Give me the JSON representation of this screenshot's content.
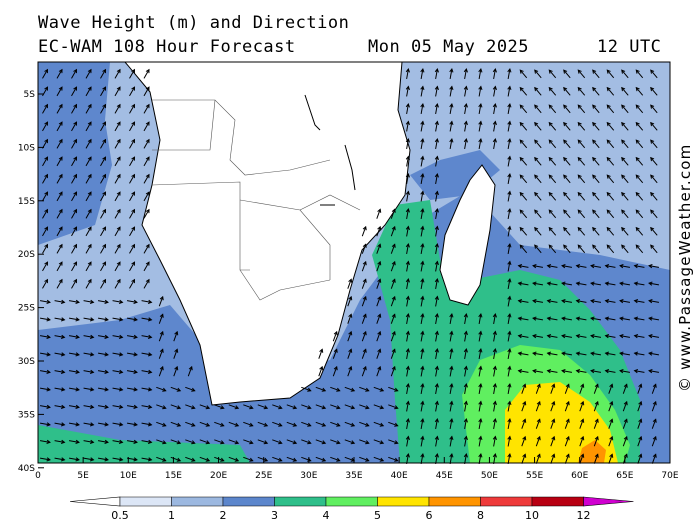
{
  "header": {
    "title_line1": "Wave Height (m) and Direction",
    "title_line2": "EC-WAM 108 Hour Forecast",
    "date": "Mon 05 May 2025",
    "time": "12 UTC"
  },
  "credit": "© www.PassageWeather.com",
  "axes": {
    "lat_labels": [
      "5S",
      "10S",
      "15S",
      "20S",
      "25S",
      "30S",
      "35S",
      "40S"
    ],
    "lon_labels": [
      "0",
      "5E",
      "10E",
      "15E",
      "20E",
      "25E",
      "30E",
      "35E",
      "40E",
      "45E",
      "50E",
      "55E",
      "60E",
      "65E",
      "70E"
    ]
  },
  "colorbar": {
    "labels": [
      "0.5",
      "1",
      "2",
      "3",
      "4",
      "5",
      "6",
      "8",
      "10",
      "12"
    ],
    "colors": [
      "#ffffff",
      "#dce6f6",
      "#9cb8e0",
      "#5c86cc",
      "#2fbf8a",
      "#60ef60",
      "#ffe400",
      "#ff9400",
      "#ee3a3a",
      "#b80012",
      "#d000d0"
    ]
  },
  "legend_colors": {
    "land": "#ffffff",
    "sea_1_2": "#a3bde3",
    "sea_2_3": "#5e87cd",
    "sea_3_4": "#2fbf8a",
    "sea_4_5": "#60ef60",
    "sea_5_6": "#ffe400",
    "sea_6_8": "#ff9400"
  }
}
